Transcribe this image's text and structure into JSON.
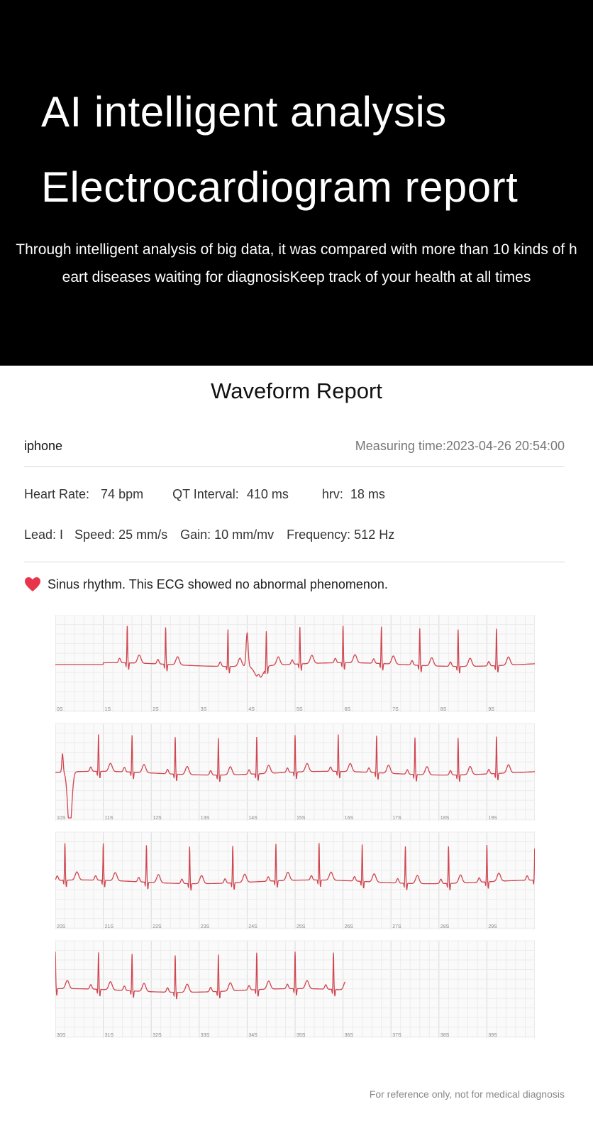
{
  "hero": {
    "title_line1": "AI intelligent analysis",
    "title_line2": "Electrocardiogram report",
    "description": "Through intelligent analysis of big data, it was compared with more than 10 kinds of heart diseases waiting for diagnosisKeep track of your health at all times"
  },
  "report": {
    "title": "Waveform Report",
    "device": "iphone",
    "measuring_time": "Measuring time:2023-04-26 20:54:00",
    "heart_rate_label": "Heart Rate:",
    "heart_rate_value": "74 bpm",
    "qt_label": "QT Interval:",
    "qt_value": "410 ms",
    "hrv_label": "hrv:",
    "hrv_value": "18 ms",
    "lead": "Lead: I",
    "speed": "Speed: 25 mm/s",
    "gain": "Gain: 10 mm/mv",
    "frequency": "Frequency: 512 Hz",
    "result_icon": "heart-icon",
    "result_text": "Sinus rhythm. This ECG showed no abnormal phenomenon.",
    "footer": "For reference only, not for medical diagnosis"
  },
  "colors": {
    "hero_bg": "#000000",
    "trace": "#d0454f",
    "grid_minor": "#ececec",
    "grid_major": "#d9d9d9",
    "heart": "#e8354a"
  },
  "chart_data": {
    "type": "line",
    "time_labels": [
      [
        "0S",
        "1S",
        "2S",
        "3S",
        "4S",
        "5S",
        "6S",
        "7S",
        "8S",
        "9S"
      ],
      [
        "10S",
        "11S",
        "12S",
        "13S",
        "14S",
        "15S",
        "16S",
        "17S",
        "18S",
        "19S"
      ],
      [
        "20S",
        "21S",
        "22S",
        "23S",
        "24S",
        "25S",
        "26S",
        "27S",
        "28S",
        "29S"
      ],
      [
        "30S",
        "31S",
        "32S",
        "33S",
        "34S",
        "35S",
        "36S",
        "37S",
        "38S",
        "39S"
      ]
    ],
    "seconds_per_strip": 10,
    "recording_length_s": 36,
    "beats_s": [
      1.5,
      2.3,
      3.6,
      4.4,
      5.1,
      6.0,
      6.8,
      7.6,
      8.4,
      9.2,
      10.9,
      11.6,
      12.5,
      13.4,
      14.2,
      15.0,
      15.9,
      16.7,
      17.5,
      18.4,
      19.2,
      20.2,
      21.0,
      21.9,
      22.8,
      23.7,
      24.6,
      25.5,
      26.4,
      27.3,
      28.2,
      29.0,
      30.0,
      30.9,
      31.6,
      32.5,
      33.4,
      34.2,
      35.0,
      35.8
    ]
  }
}
